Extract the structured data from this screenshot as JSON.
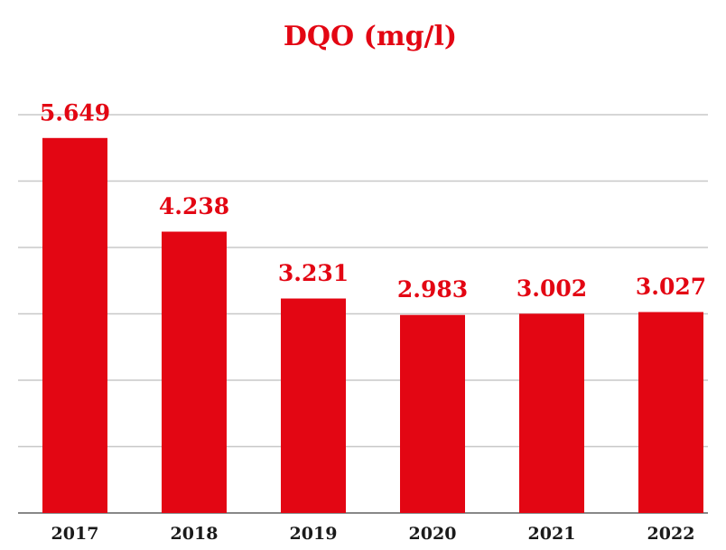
{
  "chart_data": {
    "type": "bar",
    "title": "DQO (mg/l)",
    "categories": [
      "2017",
      "2018",
      "2019",
      "2020",
      "2021",
      "2022"
    ],
    "values": [
      5.649,
      4.238,
      3.231,
      2.983,
      3.002,
      3.027
    ],
    "color": "#e30613",
    "ylim": [
      0,
      6
    ],
    "yticks": [
      0,
      1,
      2,
      3,
      4,
      5,
      6
    ],
    "grid": true
  }
}
